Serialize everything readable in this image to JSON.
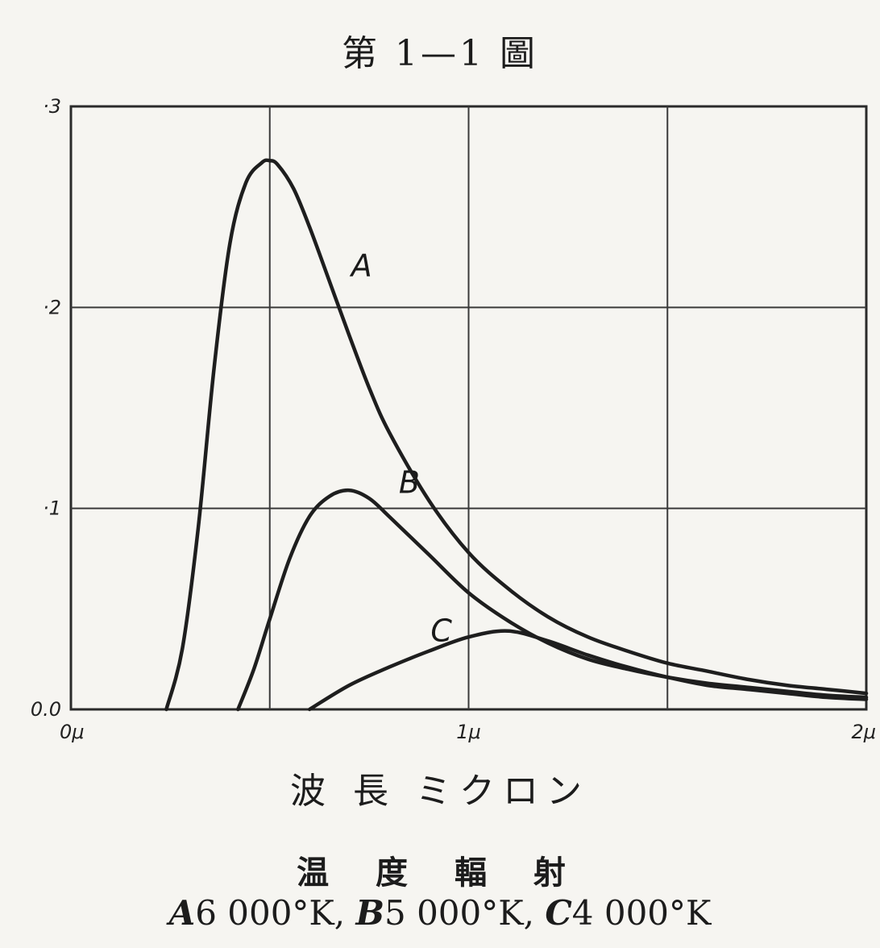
{
  "figure": {
    "title": "第 1—1 圖",
    "caption_line1": "温 度 輻 射",
    "caption_line2": [
      {
        "letter": "A",
        "text": "6 000°K,"
      },
      {
        "letter": "B",
        "text": "5 000°K,"
      },
      {
        "letter": "C",
        "text": "4 000°K"
      }
    ]
  },
  "chart_data": {
    "type": "line",
    "title": "第 1—1 圖",
    "xlabel": "波 長 ミクロン",
    "ylabel": "",
    "xlim": [
      0,
      2
    ],
    "ylim": [
      0,
      0.3
    ],
    "x_ticks": [
      {
        "value": 0,
        "label": "0μ"
      },
      {
        "value": 1,
        "label": "1μ"
      },
      {
        "value": 2,
        "label": "2μ"
      }
    ],
    "x_grid": [
      0.5,
      1,
      1.5
    ],
    "y_ticks": [
      {
        "value": 0,
        "label": "0.0"
      },
      {
        "value": 0.1,
        "label": "·1"
      },
      {
        "value": 0.2,
        "label": "·2"
      },
      {
        "value": 0.3,
        "label": "·3"
      }
    ],
    "grid": true,
    "series": [
      {
        "name": "A",
        "x": [
          0.24,
          0.28,
          0.32,
          0.36,
          0.4,
          0.44,
          0.48,
          0.5,
          0.52,
          0.56,
          0.6,
          0.65,
          0.7,
          0.75,
          0.8,
          0.9,
          1.0,
          1.1,
          1.2,
          1.3,
          1.4,
          1.5,
          1.6,
          1.7,
          1.8,
          1.9,
          2.0
        ],
        "y": [
          0.0,
          0.03,
          0.09,
          0.17,
          0.232,
          0.262,
          0.272,
          0.273,
          0.271,
          0.259,
          0.24,
          0.213,
          0.186,
          0.16,
          0.138,
          0.104,
          0.078,
          0.06,
          0.046,
          0.036,
          0.029,
          0.023,
          0.019,
          0.015,
          0.012,
          0.01,
          0.008
        ]
      },
      {
        "name": "B",
        "x": [
          0.42,
          0.46,
          0.5,
          0.55,
          0.6,
          0.65,
          0.7,
          0.75,
          0.8,
          0.9,
          1.0,
          1.1,
          1.2,
          1.3,
          1.4,
          1.5,
          1.6,
          1.7,
          1.8,
          1.9,
          2.0
        ],
        "y": [
          0.0,
          0.02,
          0.045,
          0.075,
          0.096,
          0.106,
          0.109,
          0.105,
          0.096,
          0.077,
          0.058,
          0.044,
          0.033,
          0.025,
          0.02,
          0.016,
          0.013,
          0.011,
          0.009,
          0.007,
          0.006
        ]
      },
      {
        "name": "C",
        "x": [
          0.6,
          0.7,
          0.8,
          0.9,
          1.0,
          1.1,
          1.2,
          1.3,
          1.4,
          1.5,
          1.6,
          1.7,
          1.8,
          1.9,
          2.0
        ],
        "y": [
          0.0,
          0.012,
          0.021,
          0.029,
          0.036,
          0.039,
          0.034,
          0.027,
          0.021,
          0.016,
          0.012,
          0.01,
          0.008,
          0.006,
          0.005
        ]
      }
    ],
    "colors": {
      "curve": "#1e1e1e",
      "grid": "#3a3a3a",
      "frame": "#2a2a2a"
    }
  }
}
